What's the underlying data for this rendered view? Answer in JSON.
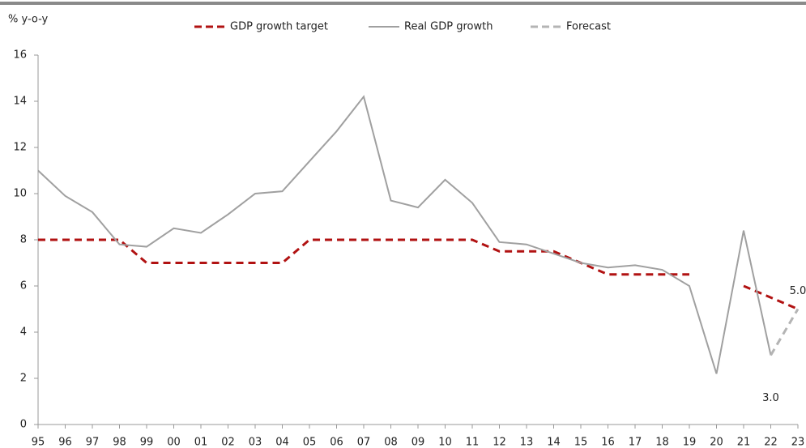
{
  "chart_data": {
    "type": "line",
    "y_label": "% y-o-y",
    "categories": [
      "95",
      "96",
      "97",
      "98",
      "99",
      "00",
      "01",
      "02",
      "03",
      "04",
      "05",
      "06",
      "07",
      "08",
      "09",
      "10",
      "11",
      "12",
      "13",
      "14",
      "15",
      "16",
      "17",
      "18",
      "19",
      "20",
      "21",
      "22",
      "23"
    ],
    "series": [
      {
        "name": "GDP growth target",
        "color": "#b11212",
        "dash": true,
        "values": [
          8,
          8,
          8,
          8,
          7,
          7,
          7,
          7,
          7,
          7,
          8,
          8,
          8,
          8,
          8,
          8,
          8,
          7.5,
          7.5,
          7.5,
          7,
          6.5,
          6.5,
          6.5,
          6.5,
          null,
          6,
          5.5,
          5
        ]
      },
      {
        "name": "Real GDP growth",
        "color": "#a0a0a0",
        "dash": false,
        "values": [
          11.0,
          9.9,
          9.2,
          7.8,
          7.7,
          8.5,
          8.3,
          9.1,
          10.0,
          10.1,
          11.4,
          12.7,
          14.2,
          9.7,
          9.4,
          10.6,
          9.6,
          7.9,
          7.8,
          7.4,
          7.0,
          6.8,
          6.9,
          6.7,
          6.0,
          2.2,
          8.4,
          3.0,
          null
        ]
      },
      {
        "name": "Forecast",
        "color": "#b4b4b4",
        "dash": true,
        "values": [
          null,
          null,
          null,
          null,
          null,
          null,
          null,
          null,
          null,
          null,
          null,
          null,
          null,
          null,
          null,
          null,
          null,
          null,
          null,
          null,
          null,
          null,
          null,
          null,
          null,
          null,
          null,
          3.0,
          5.0
        ],
        "value_labels": [
          null,
          null,
          null,
          null,
          null,
          null,
          null,
          null,
          null,
          null,
          null,
          null,
          null,
          null,
          null,
          null,
          null,
          null,
          null,
          null,
          null,
          null,
          null,
          null,
          null,
          null,
          null,
          "3.0",
          "5.0"
        ]
      }
    ],
    "ylim": [
      0,
      16
    ],
    "yticks": [
      0,
      2,
      4,
      6,
      8,
      10,
      12,
      14,
      16
    ],
    "grid": false
  }
}
